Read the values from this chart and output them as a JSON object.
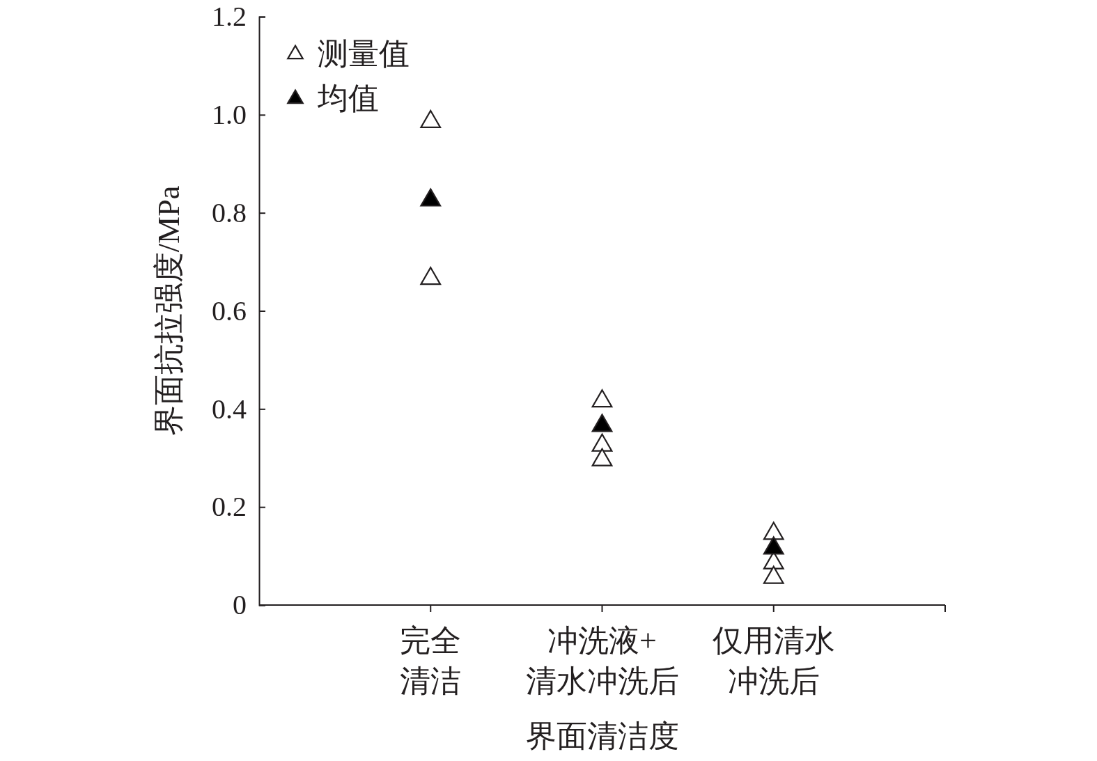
{
  "chart_data": {
    "type": "scatter",
    "xlabel": "界面清洁度",
    "ylabel": "界面抗拉强度/MPa",
    "categories": [
      "完全清洁",
      "冲洗液+清水冲洗后",
      "仅用清水冲洗后"
    ],
    "ylim": [
      0,
      1.2
    ],
    "yticks": [
      0,
      0.2,
      0.4,
      0.6,
      0.8,
      {
        "value": 1,
        "label": "1.0"
      },
      1.2
    ],
    "marker": "triangle",
    "legend": "top left",
    "grid": false,
    "series": [
      {
        "name": "测量值",
        "color": "#ffffff",
        "x": [
          "完全清洁",
          "完全清洁",
          "冲洗液+清水冲洗后",
          "冲洗液+清水冲洗后",
          "冲洗液+清水冲洗后",
          "仅用清水冲洗后",
          "仅用清水冲洗后",
          "仅用清水冲洗后"
        ],
        "values": [
          0.99,
          0.67,
          0.42,
          0.33,
          0.3,
          0.15,
          0.09,
          0.06
        ]
      },
      {
        "name": "均值",
        "color": "#000000",
        "x": [
          "完全清洁",
          "冲洗液+清水冲洗后",
          "仅用清水冲洗后"
        ],
        "values": [
          0.83,
          0.37,
          0.12
        ]
      }
    ]
  }
}
